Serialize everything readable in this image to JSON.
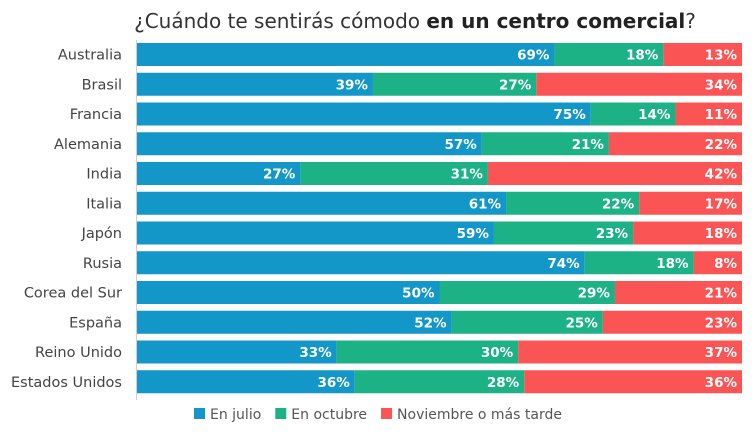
{
  "chart_data": {
    "type": "bar",
    "orientation": "horizontal",
    "stacked": true,
    "title_prefix": "¿Cuándo te sentirás cómodo ",
    "title_bold": "en un centro comercial",
    "title_suffix": "?",
    "categories": [
      "Australia",
      "Brasil",
      "Francia",
      "Alemania",
      "India",
      "Italia",
      "Japón",
      "Rusia",
      "Corea del Sur",
      "España",
      "Reino Unido",
      "Estados Unidos"
    ],
    "series": [
      {
        "name": "En julio",
        "color": "#1396c8",
        "values": [
          69,
          39,
          75,
          57,
          27,
          61,
          59,
          74,
          50,
          52,
          33,
          36
        ]
      },
      {
        "name": "En octubre",
        "color": "#1cb285",
        "values": [
          18,
          27,
          14,
          21,
          31,
          22,
          23,
          18,
          29,
          25,
          30,
          28
        ]
      },
      {
        "name": "Noviembre o más tarde",
        "color": "#fa5454",
        "values": [
          13,
          34,
          11,
          22,
          42,
          17,
          18,
          8,
          21,
          23,
          37,
          36
        ]
      }
    ],
    "value_suffix": "%",
    "xlim": [
      0,
      100
    ],
    "legend_position": "bottom",
    "grid": false
  }
}
